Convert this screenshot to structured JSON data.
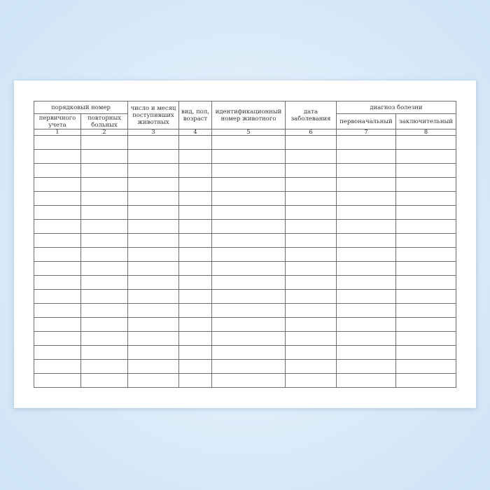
{
  "form": {
    "headers": {
      "serial_number": "порядковый номер",
      "primary": "первичного учета",
      "repeat": "повторных больных",
      "date_arrived": "число и месяц поступивших животных",
      "species": "вид, пол, возраст",
      "id_number": "идентификационный номер животного",
      "date_illness": "дата заболевания",
      "diagnosis": "диагноз болезни",
      "initial": "первоначальный",
      "final": "заключительный"
    },
    "column_numbers": [
      "1",
      "2",
      "3",
      "4",
      "5",
      "6",
      "7",
      "8"
    ],
    "empty_rows": 18
  }
}
